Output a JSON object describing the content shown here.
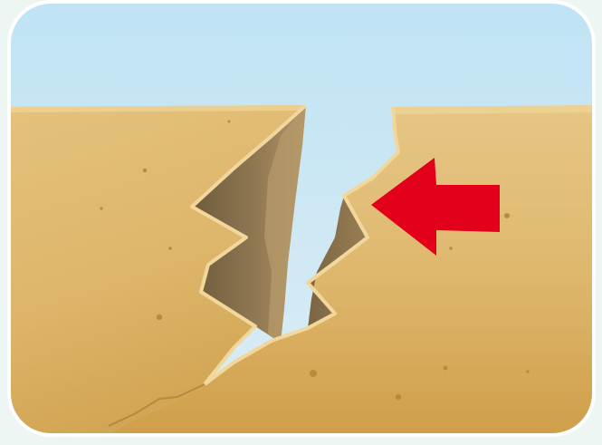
{
  "scene": {
    "subject": "ground-fissure",
    "colors": {
      "page_background": "#eef6f3",
      "frame": "#ffffff",
      "sky_top": "#bfe3f5",
      "sky_bottom": "#dcedf3",
      "ground_light": "#e6c47e",
      "ground_mid": "#dcb062",
      "ground_dark": "#c99a45",
      "crack_wall_dark": "#7f6a48",
      "crack_wall_light": "#b09062",
      "ground_edge_highlight": "#f0d596",
      "arrow": "#e2001a"
    },
    "arrow": {
      "direction": "left",
      "icon": "red-arrow-icon"
    }
  }
}
